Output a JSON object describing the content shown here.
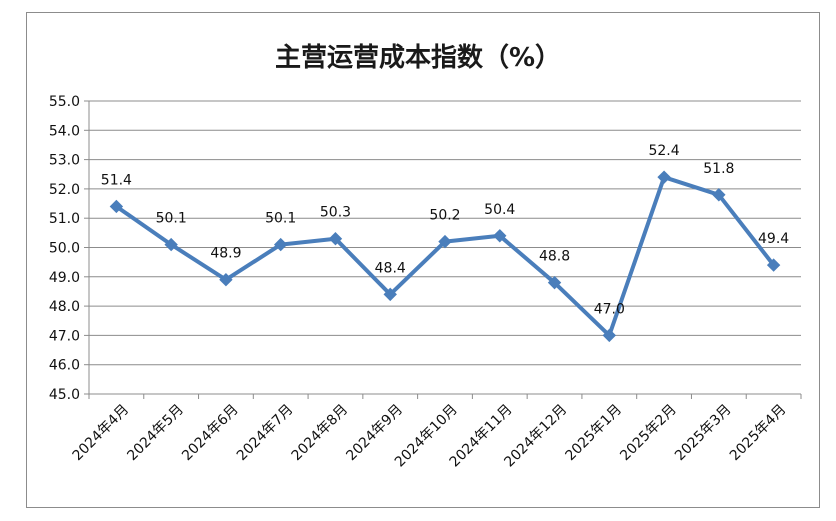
{
  "chart_data": {
    "type": "line",
    "title": "主营运营成本指数（%）",
    "xlabel": "",
    "ylabel": "",
    "categories": [
      "2024年4月",
      "2024年5月",
      "2024年6月",
      "2024年7月",
      "2024年8月",
      "2024年9月",
      "2024年10月",
      "2024年11月",
      "2024年12月",
      "2025年1月",
      "2025年2月",
      "2025年3月",
      "2025年4月"
    ],
    "series": [
      {
        "values": [
          51.4,
          50.1,
          48.9,
          50.1,
          50.3,
          48.4,
          50.2,
          50.4,
          48.8,
          47.0,
          52.4,
          51.8,
          49.4
        ],
        "labels": [
          "51.4",
          "50.1",
          "48.9",
          "50.1",
          "50.3",
          "48.4",
          "50.2",
          "50.4",
          "48.8",
          "47.0",
          "52.4",
          "51.8",
          "49.4"
        ]
      }
    ],
    "ylim": [
      45.0,
      55.0
    ],
    "yticks": [
      "45.0",
      "46.0",
      "47.0",
      "48.0",
      "49.0",
      "50.0",
      "51.0",
      "52.0",
      "53.0",
      "54.0",
      "55.0"
    ],
    "grid": "horizontal",
    "legend": "none",
    "line_color": "#4a7ebb",
    "grid_color": "#8c8c8c"
  }
}
